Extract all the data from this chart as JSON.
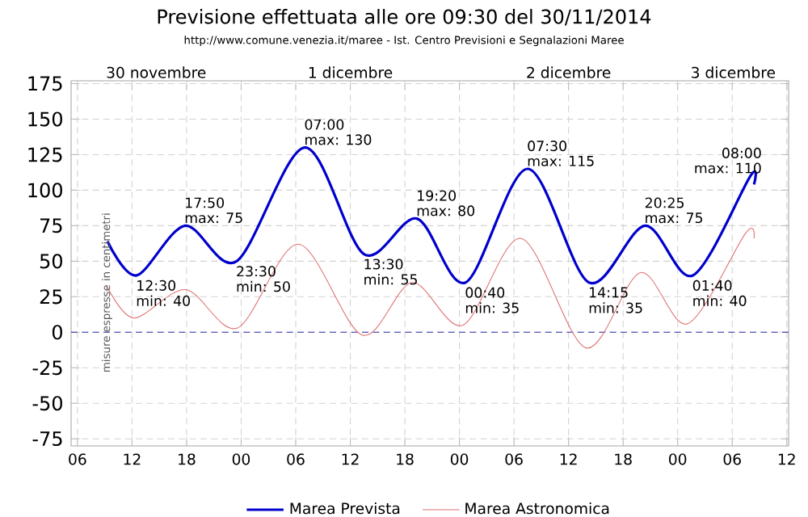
{
  "chart_data": {
    "type": "line",
    "title": "Previsione effettuata alle ore 09:30 del 30/11/2014",
    "subtitle": "http://www.comune.venezia.it/maree - Ist. Centro Previsioni e Segnalazioni Maree",
    "xlim": [
      5.3,
      84.2
    ],
    "xticks": [
      {
        "value": 6,
        "label": "06"
      },
      12,
      18,
      {
        "value": 24,
        "label": "00"
      },
      {
        "value": 30,
        "label": "06"
      },
      {
        "value": 36,
        "label": "12"
      },
      {
        "value": 42,
        "label": "18"
      },
      {
        "value": 48,
        "label": "00"
      },
      {
        "value": 54,
        "label": "06"
      },
      {
        "value": 60,
        "label": "12"
      },
      {
        "value": 66,
        "label": "18"
      },
      {
        "value": 72,
        "label": "00"
      },
      {
        "value": 78,
        "label": "06"
      },
      {
        "value": 84,
        "label": "12"
      }
    ],
    "ylim": [
      -80,
      177
    ],
    "yticks": [
      -75,
      -50,
      -25,
      0,
      25,
      50,
      75,
      100,
      125,
      150,
      175
    ],
    "grid": true,
    "legend": "bottom",
    "series": [
      {
        "name": "Marea Prevista",
        "color": "#0000cc",
        "x": [
          9.3,
          12.5,
          17.83,
          23.5,
          31,
          37.5,
          43.33,
          48.67,
          55.5,
          62.25,
          68.42,
          73.67,
          80,
          80.4
        ],
        "values": [
          64,
          40,
          75,
          50,
          130,
          55,
          80,
          35,
          115,
          35,
          75,
          40,
          110,
          104
        ]
      },
      {
        "name": "Marea Astronomica",
        "color": "#e07070",
        "x": [
          9.2,
          12.2,
          17.9,
          23.6,
          30.3,
          37.3,
          42.8,
          48.4,
          54.8,
          61.9,
          67.9,
          73.1,
          79.5,
          80.4
        ],
        "values": [
          33,
          10,
          30,
          3,
          62,
          -2,
          35,
          5,
          66,
          -11,
          42,
          6,
          70,
          66
        ]
      }
    ],
    "ref_lines": [
      {
        "axis": "y",
        "value": 0,
        "color": "#3333aa",
        "line_style": "dashed"
      }
    ],
    "annotations": [
      "misure espresse in centimetri",
      "30 novembre",
      "1 dicembre",
      "2 dicembre",
      "3 dicembre",
      {
        "text": "12:30",
        "x": 12.5,
        "y": 40
      },
      {
        "text": "min: 40",
        "x": 12.5,
        "y": 40
      },
      {
        "text": "17:50",
        "x": 17.83,
        "y": 75
      },
      {
        "text": "max: 75",
        "x": 17.83,
        "y": 75
      },
      {
        "text": "23:30",
        "x": 23.5,
        "y": 50
      },
      {
        "text": "min: 50",
        "x": 23.5,
        "y": 50
      },
      {
        "text": "07:00",
        "x": 31,
        "y": 130
      },
      {
        "text": "max: 130",
        "x": 31,
        "y": 130
      },
      {
        "text": "13:30",
        "x": 37.5,
        "y": 55
      },
      {
        "text": "min: 55",
        "x": 37.5,
        "y": 55
      },
      {
        "text": "19:20",
        "x": 43.33,
        "y": 80
      },
      {
        "text": "max: 80",
        "x": 43.33,
        "y": 80
      },
      {
        "text": "00:40",
        "x": 48.67,
        "y": 35
      },
      {
        "text": "min: 35",
        "x": 48.67,
        "y": 35
      },
      {
        "text": "07:30",
        "x": 55.5,
        "y": 115
      },
      {
        "text": "max: 115",
        "x": 55.5,
        "y": 115
      },
      {
        "text": "14:15",
        "x": 62.25,
        "y": 35
      },
      {
        "text": "min: 35",
        "x": 62.25,
        "y": 35
      },
      {
        "text": "20:25",
        "x": 68.42,
        "y": 75
      },
      {
        "text": "max: 75",
        "x": 68.42,
        "y": 75
      },
      {
        "text": "01:40",
        "x": 73.67,
        "y": 40
      },
      {
        "text": "min: 40",
        "x": 73.67,
        "y": 40
      },
      {
        "text": "08:00",
        "x": 80,
        "y": 110
      },
      {
        "text": "max: 110",
        "x": 80,
        "y": 110
      }
    ]
  }
}
